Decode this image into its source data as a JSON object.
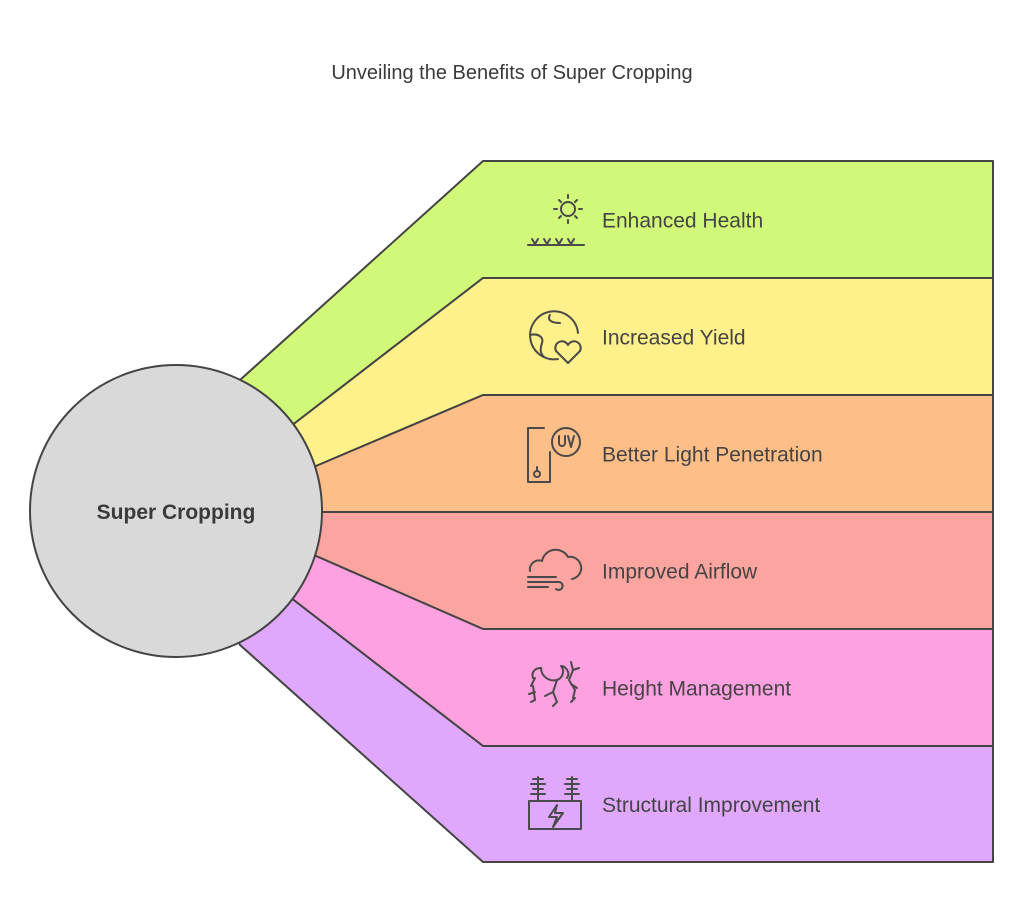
{
  "title": "Unveiling the Benefits of Super Cropping",
  "center": {
    "label": "Super Cropping",
    "color": "#d9d9d9"
  },
  "items": [
    {
      "label": "Enhanced Health",
      "icon": "sun-grass-icon",
      "color": "#d2f87a"
    },
    {
      "label": "Increased Yield",
      "icon": "globe-heart-icon",
      "color": "#fef08a"
    },
    {
      "label": "Better Light Penetration",
      "icon": "uv-device-icon",
      "color": "#fdbe88"
    },
    {
      "label": "Improved Airflow",
      "icon": "cloud-wind-icon",
      "color": "#fca5a0"
    },
    {
      "label": "Height Management",
      "icon": "roots-plant-icon",
      "color": "#fda1e1"
    },
    {
      "label": "Structural Improvement",
      "icon": "power-structure-icon",
      "color": "#e0a8fc"
    }
  ]
}
